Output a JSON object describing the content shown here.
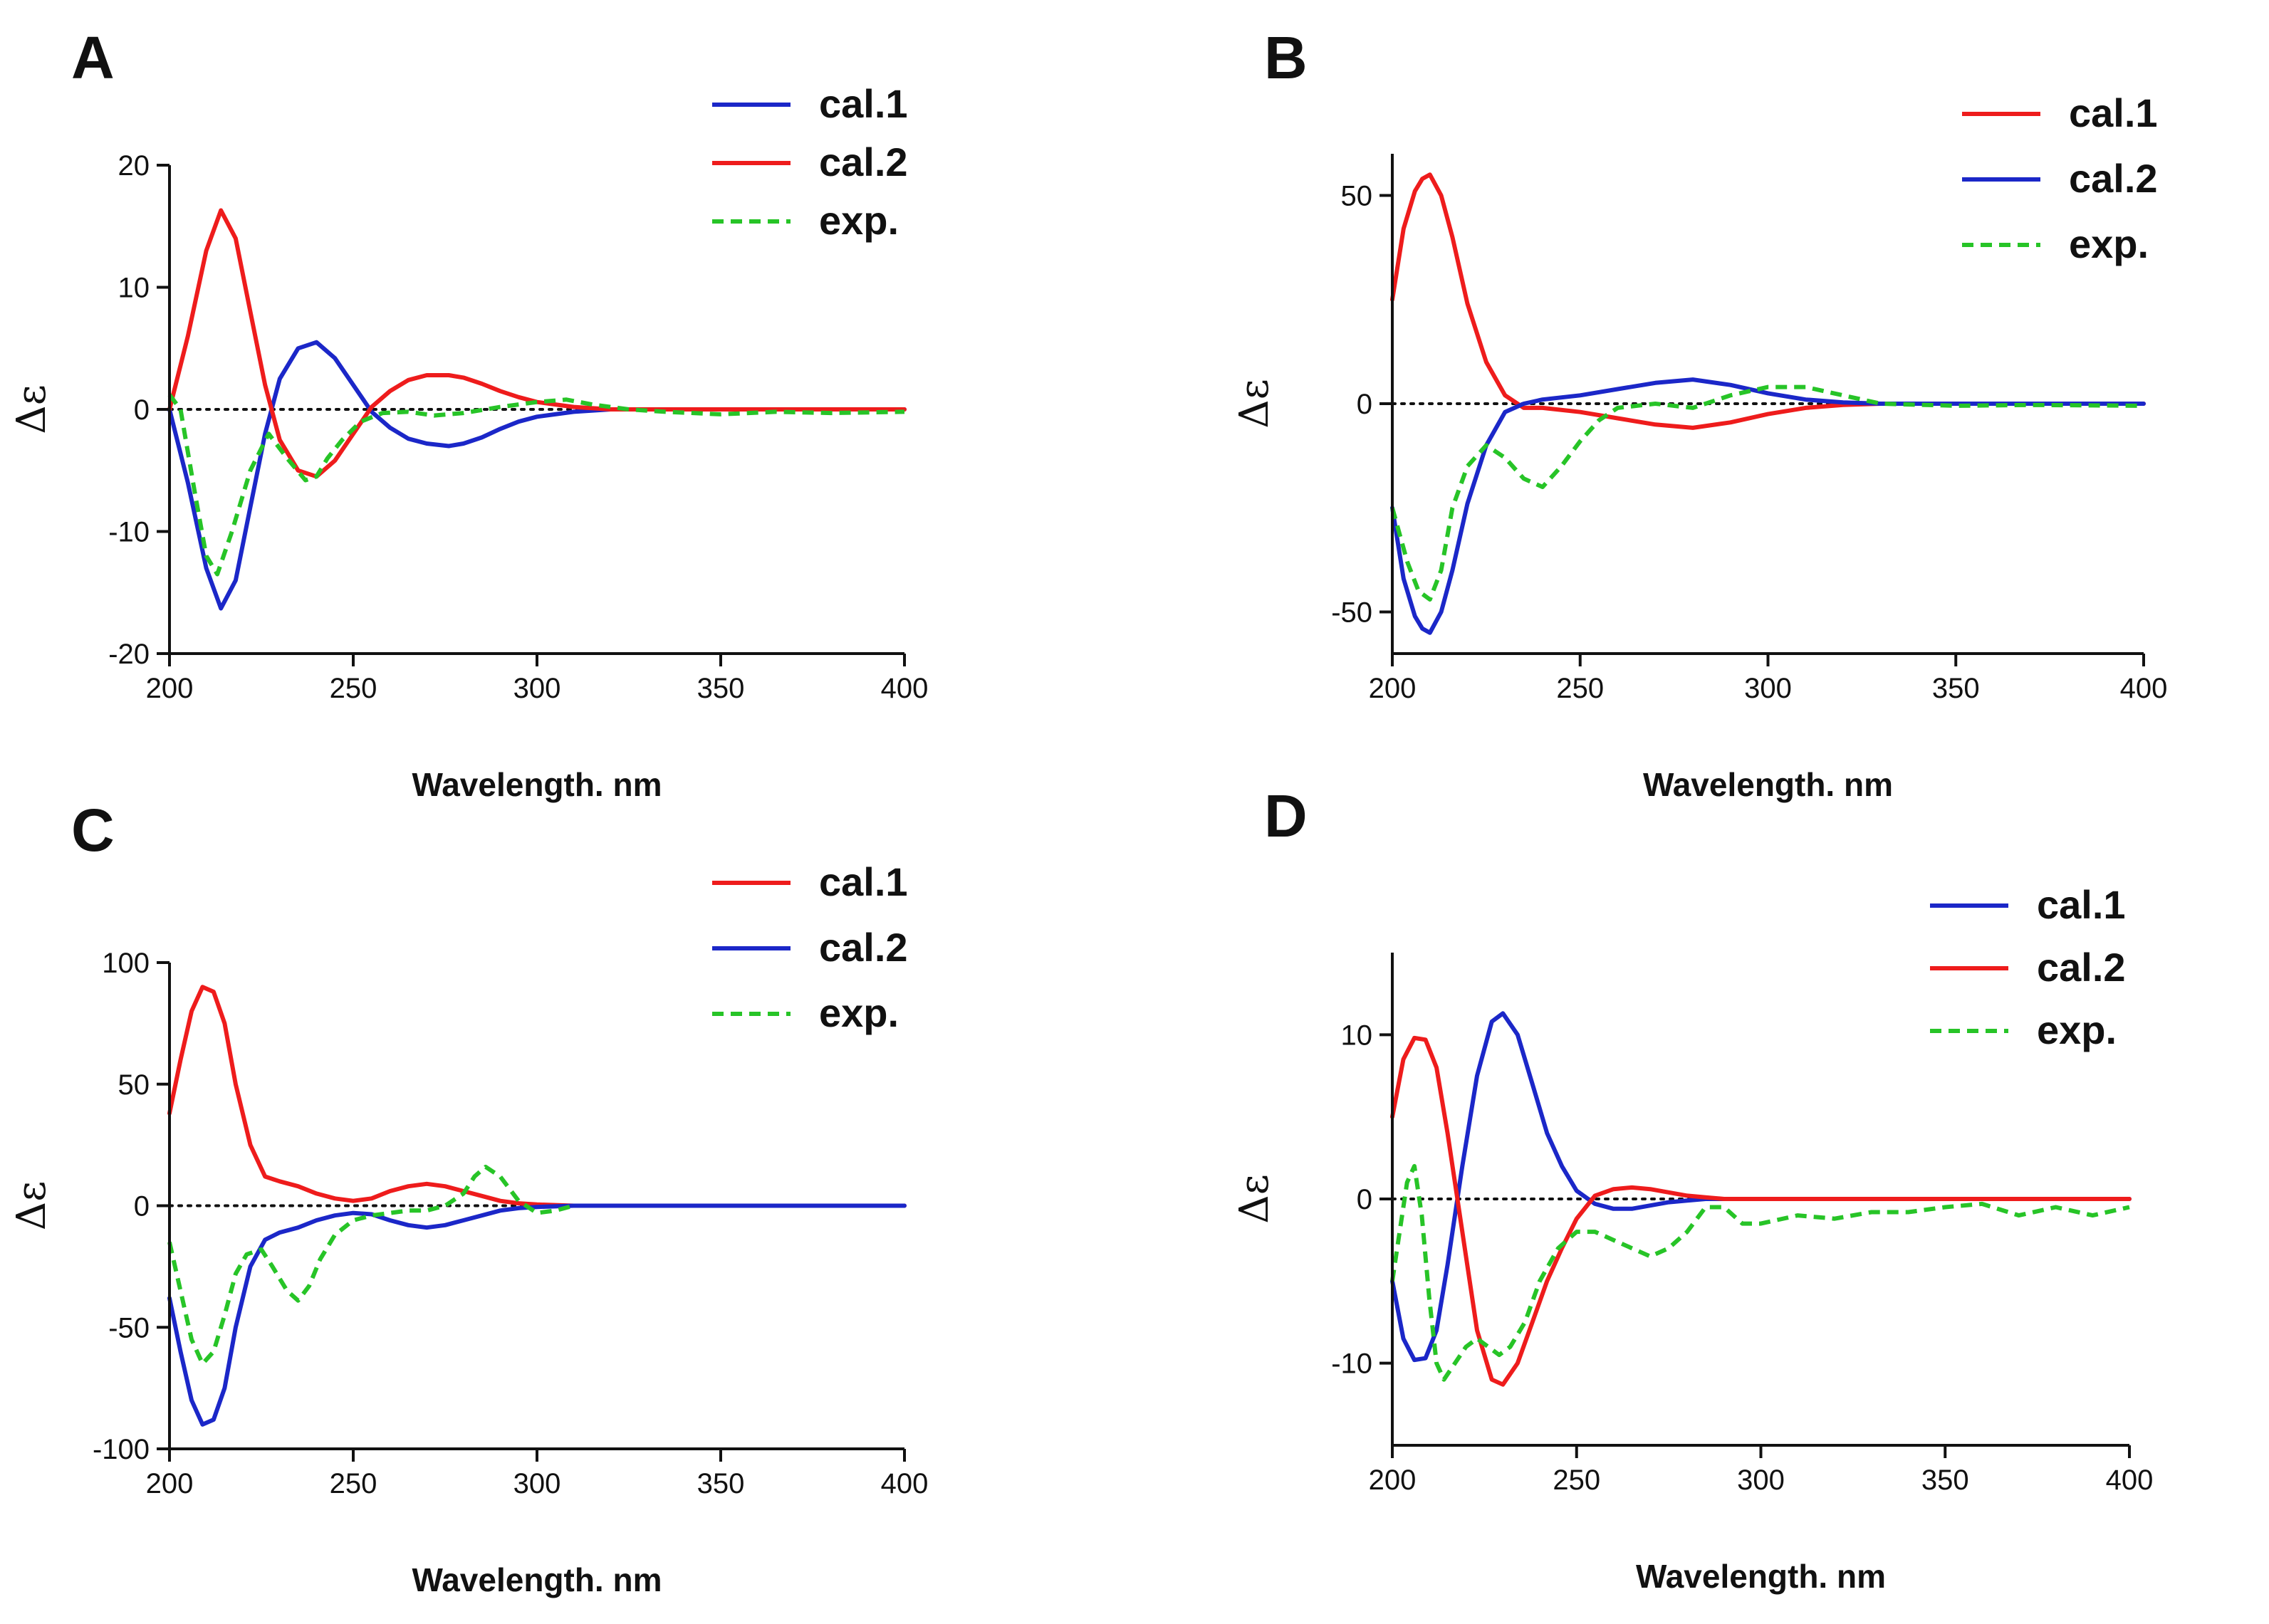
{
  "figure": {
    "description_labels": [
      "A",
      "B",
      "C",
      "D"
    ]
  },
  "colors": {
    "red": "#ee1c1c",
    "blue": "#1b27c8",
    "green": "#27c427",
    "axis": "#111111"
  },
  "chart_data": [
    {
      "panel": "A",
      "type": "line",
      "xlabel": "Wavelength. nm",
      "ylabel": "Δε",
      "xlim": [
        200,
        400
      ],
      "ylim": [
        -20,
        20
      ],
      "xticks": [
        200,
        250,
        300,
        350,
        400
      ],
      "yticks": [
        -20,
        -10,
        0,
        10,
        20
      ],
      "zero_line": true,
      "legend": "top-right",
      "series": [
        {
          "name": "cal.1",
          "color": "#1b27c8",
          "style": "solid",
          "x": [
            200,
            205,
            210,
            214,
            218,
            222,
            226,
            230,
            235,
            240,
            245,
            250,
            255,
            260,
            265,
            270,
            276,
            280,
            285,
            290,
            295,
            300,
            310,
            320,
            330,
            400
          ],
          "y": [
            0,
            -6,
            -13,
            -16.3,
            -14,
            -8,
            -2,
            2.5,
            5,
            5.5,
            4.2,
            2,
            -0.2,
            -1.5,
            -2.4,
            -2.8,
            -3,
            -2.8,
            -2.3,
            -1.6,
            -1,
            -0.6,
            -0.2,
            0,
            0,
            0
          ]
        },
        {
          "name": "cal.2",
          "color": "#ee1c1c",
          "style": "solid",
          "x": [
            200,
            205,
            210,
            214,
            218,
            222,
            226,
            230,
            235,
            240,
            245,
            250,
            255,
            260,
            265,
            270,
            276,
            280,
            285,
            290,
            295,
            300,
            310,
            320,
            330,
            400
          ],
          "y": [
            0,
            6,
            13,
            16.3,
            14,
            8,
            2,
            -2.5,
            -5,
            -5.5,
            -4.2,
            -2,
            0.2,
            1.5,
            2.4,
            2.8,
            2.8,
            2.6,
            2.1,
            1.5,
            1,
            0.6,
            0.2,
            0,
            0,
            0
          ]
        },
        {
          "name": "exp.",
          "color": "#27c427",
          "style": "dashed",
          "x": [
            200,
            203,
            207,
            210,
            213,
            217,
            222,
            227,
            232,
            237,
            240,
            243,
            247,
            252,
            258,
            265,
            272,
            280,
            290,
            300,
            308,
            315,
            325,
            335,
            350,
            365,
            380,
            400
          ],
          "y": [
            1.2,
            0,
            -7,
            -12,
            -13.5,
            -10,
            -5,
            -2,
            -4,
            -5.8,
            -5.5,
            -4,
            -2.5,
            -1,
            -0.3,
            -0.2,
            -0.5,
            -0.3,
            0.2,
            0.6,
            0.8,
            0.4,
            0,
            -0.2,
            -0.4,
            -0.2,
            -0.3,
            -0.2
          ]
        }
      ]
    },
    {
      "panel": "B",
      "type": "line",
      "xlabel": "Wavelength. nm",
      "ylabel": "Δε",
      "xlim": [
        200,
        400
      ],
      "ylim": [
        -60,
        60
      ],
      "xticks": [
        200,
        250,
        300,
        350,
        400
      ],
      "yticks": [
        -50,
        0,
        50
      ],
      "zero_line": true,
      "legend": "top-right",
      "series": [
        {
          "name": "cal.1",
          "color": "#ee1c1c",
          "style": "solid",
          "x": [
            200,
            203,
            206,
            208,
            210,
            213,
            216,
            220,
            225,
            230,
            235,
            240,
            250,
            260,
            270,
            280,
            290,
            300,
            310,
            320,
            330,
            400
          ],
          "y": [
            25,
            42,
            51,
            54,
            55,
            50,
            40,
            24,
            10,
            2,
            -1,
            -1,
            -2,
            -3.5,
            -5,
            -5.8,
            -4.5,
            -2.5,
            -1,
            -0.3,
            0,
            0
          ]
        },
        {
          "name": "cal.2",
          "color": "#1b27c8",
          "style": "solid",
          "x": [
            200,
            203,
            206,
            208,
            210,
            213,
            216,
            220,
            225,
            230,
            235,
            240,
            250,
            260,
            270,
            280,
            290,
            300,
            310,
            320,
            330,
            400
          ],
          "y": [
            -25,
            -42,
            -51,
            -54,
            -55,
            -50,
            -40,
            -24,
            -10,
            -2,
            0,
            1,
            2,
            3.5,
            5,
            5.8,
            4.5,
            2.5,
            1,
            0.3,
            0,
            0
          ]
        },
        {
          "name": "exp.",
          "color": "#27c427",
          "style": "dashed",
          "x": [
            200,
            204,
            207,
            210,
            213,
            216,
            220,
            225,
            230,
            235,
            240,
            245,
            250,
            255,
            260,
            270,
            280,
            290,
            300,
            310,
            320,
            330,
            350,
            370,
            400
          ],
          "y": [
            -25,
            -38,
            -45,
            -47,
            -40,
            -25,
            -15,
            -10,
            -13,
            -18,
            -20,
            -15,
            -9,
            -4,
            -1,
            0,
            -1,
            2,
            4,
            4,
            2,
            0,
            -0.5,
            -0.3,
            -0.5
          ]
        }
      ]
    },
    {
      "panel": "C",
      "type": "line",
      "xlabel": "Wavelength. nm",
      "ylabel": "Δε",
      "xlim": [
        200,
        400
      ],
      "ylim": [
        -100,
        100
      ],
      "xticks": [
        200,
        250,
        300,
        350,
        400
      ],
      "yticks": [
        -100,
        -50,
        0,
        50,
        100
      ],
      "zero_line": true,
      "legend": "top-right",
      "series": [
        {
          "name": "cal.1",
          "color": "#ee1c1c",
          "style": "solid",
          "x": [
            200,
            203,
            206,
            209,
            212,
            215,
            218,
            222,
            226,
            230,
            235,
            240,
            245,
            250,
            255,
            260,
            265,
            270,
            275,
            280,
            285,
            290,
            295,
            300,
            310,
            320,
            400
          ],
          "y": [
            38,
            60,
            80,
            90,
            88,
            75,
            50,
            25,
            12,
            10,
            8,
            5,
            3,
            2,
            3,
            6,
            8,
            9,
            8,
            6,
            4,
            2,
            1,
            0.5,
            0,
            0,
            0
          ]
        },
        {
          "name": "cal.2",
          "color": "#1b27c8",
          "style": "solid",
          "x": [
            200,
            203,
            206,
            209,
            212,
            215,
            218,
            222,
            226,
            230,
            235,
            240,
            245,
            250,
            255,
            260,
            265,
            270,
            275,
            280,
            285,
            290,
            295,
            300,
            310,
            320,
            400
          ],
          "y": [
            -38,
            -60,
            -80,
            -90,
            -88,
            -75,
            -50,
            -25,
            -14,
            -11,
            -9,
            -6,
            -4,
            -3,
            -3.5,
            -6,
            -8,
            -9,
            -8,
            -6,
            -4,
            -2,
            -1,
            -0.5,
            0,
            0,
            0
          ]
        },
        {
          "name": "exp.",
          "color": "#27c427",
          "style": "dashed",
          "x": [
            200,
            203,
            206,
            209,
            212,
            215,
            218,
            221,
            225,
            228,
            232,
            235,
            238,
            241,
            245,
            250,
            255,
            260,
            265,
            270,
            275,
            280,
            283,
            286,
            290,
            295,
            300,
            305,
            310
          ],
          "y": [
            -15,
            -35,
            -55,
            -65,
            -60,
            -45,
            -28,
            -20,
            -18,
            -25,
            -35,
            -39,
            -33,
            -22,
            -12,
            -6,
            -4,
            -3,
            -2,
            -2,
            0,
            5,
            12,
            16,
            12,
            2,
            -3,
            -2,
            0
          ]
        }
      ]
    },
    {
      "panel": "D",
      "type": "line",
      "xlabel": "Wavelength. nm",
      "ylabel": "Δε",
      "xlim": [
        200,
        400
      ],
      "ylim": [
        -15,
        15
      ],
      "xticks": [
        200,
        250,
        300,
        350,
        400
      ],
      "yticks": [
        -10,
        0,
        10
      ],
      "zero_line": true,
      "legend": "top-right",
      "series": [
        {
          "name": "cal.1",
          "color": "#1b27c8",
          "style": "solid",
          "x": [
            200,
            203,
            206,
            209,
            212,
            215,
            219,
            223,
            227,
            230,
            234,
            238,
            242,
            246,
            250,
            255,
            260,
            265,
            270,
            275,
            280,
            285,
            290,
            300,
            400
          ],
          "y": [
            -5,
            -8.5,
            -9.8,
            -9.7,
            -8,
            -4,
            2,
            7.5,
            10.8,
            11.3,
            10,
            7,
            4,
            2,
            0.5,
            -0.3,
            -0.6,
            -0.6,
            -0.4,
            -0.2,
            -0.1,
            0,
            0,
            0,
            0
          ]
        },
        {
          "name": "cal.2",
          "color": "#ee1c1c",
          "style": "solid",
          "x": [
            200,
            203,
            206,
            209,
            212,
            215,
            219,
            223,
            227,
            230,
            234,
            238,
            242,
            246,
            250,
            255,
            260,
            265,
            270,
            275,
            280,
            285,
            290,
            300,
            400
          ],
          "y": [
            5,
            8.5,
            9.8,
            9.7,
            8,
            4,
            -2,
            -8,
            -11,
            -11.3,
            -10,
            -7.5,
            -5,
            -3,
            -1.2,
            0.2,
            0.6,
            0.7,
            0.6,
            0.4,
            0.2,
            0.1,
            0,
            0,
            0
          ]
        },
        {
          "name": "exp.",
          "color": "#27c427",
          "style": "dashed",
          "x": [
            200,
            202,
            204,
            206,
            208,
            210,
            212,
            214,
            217,
            220,
            223,
            226,
            229,
            232,
            236,
            240,
            245,
            250,
            255,
            260,
            265,
            270,
            275,
            280,
            285,
            290,
            295,
            300,
            310,
            320,
            330,
            340,
            350,
            360,
            370,
            380,
            390,
            400
          ],
          "y": [
            -5,
            -2,
            1,
            2,
            -1,
            -6,
            -10,
            -11,
            -10,
            -9,
            -8.5,
            -9,
            -9.5,
            -9,
            -7.5,
            -5,
            -3,
            -2,
            -2,
            -2.5,
            -3,
            -3.5,
            -3,
            -2,
            -0.5,
            -0.5,
            -1.5,
            -1.5,
            -1,
            -1.2,
            -0.8,
            -0.8,
            -0.5,
            -0.3,
            -1,
            -0.5,
            -1,
            -0.5
          ]
        }
      ]
    }
  ]
}
